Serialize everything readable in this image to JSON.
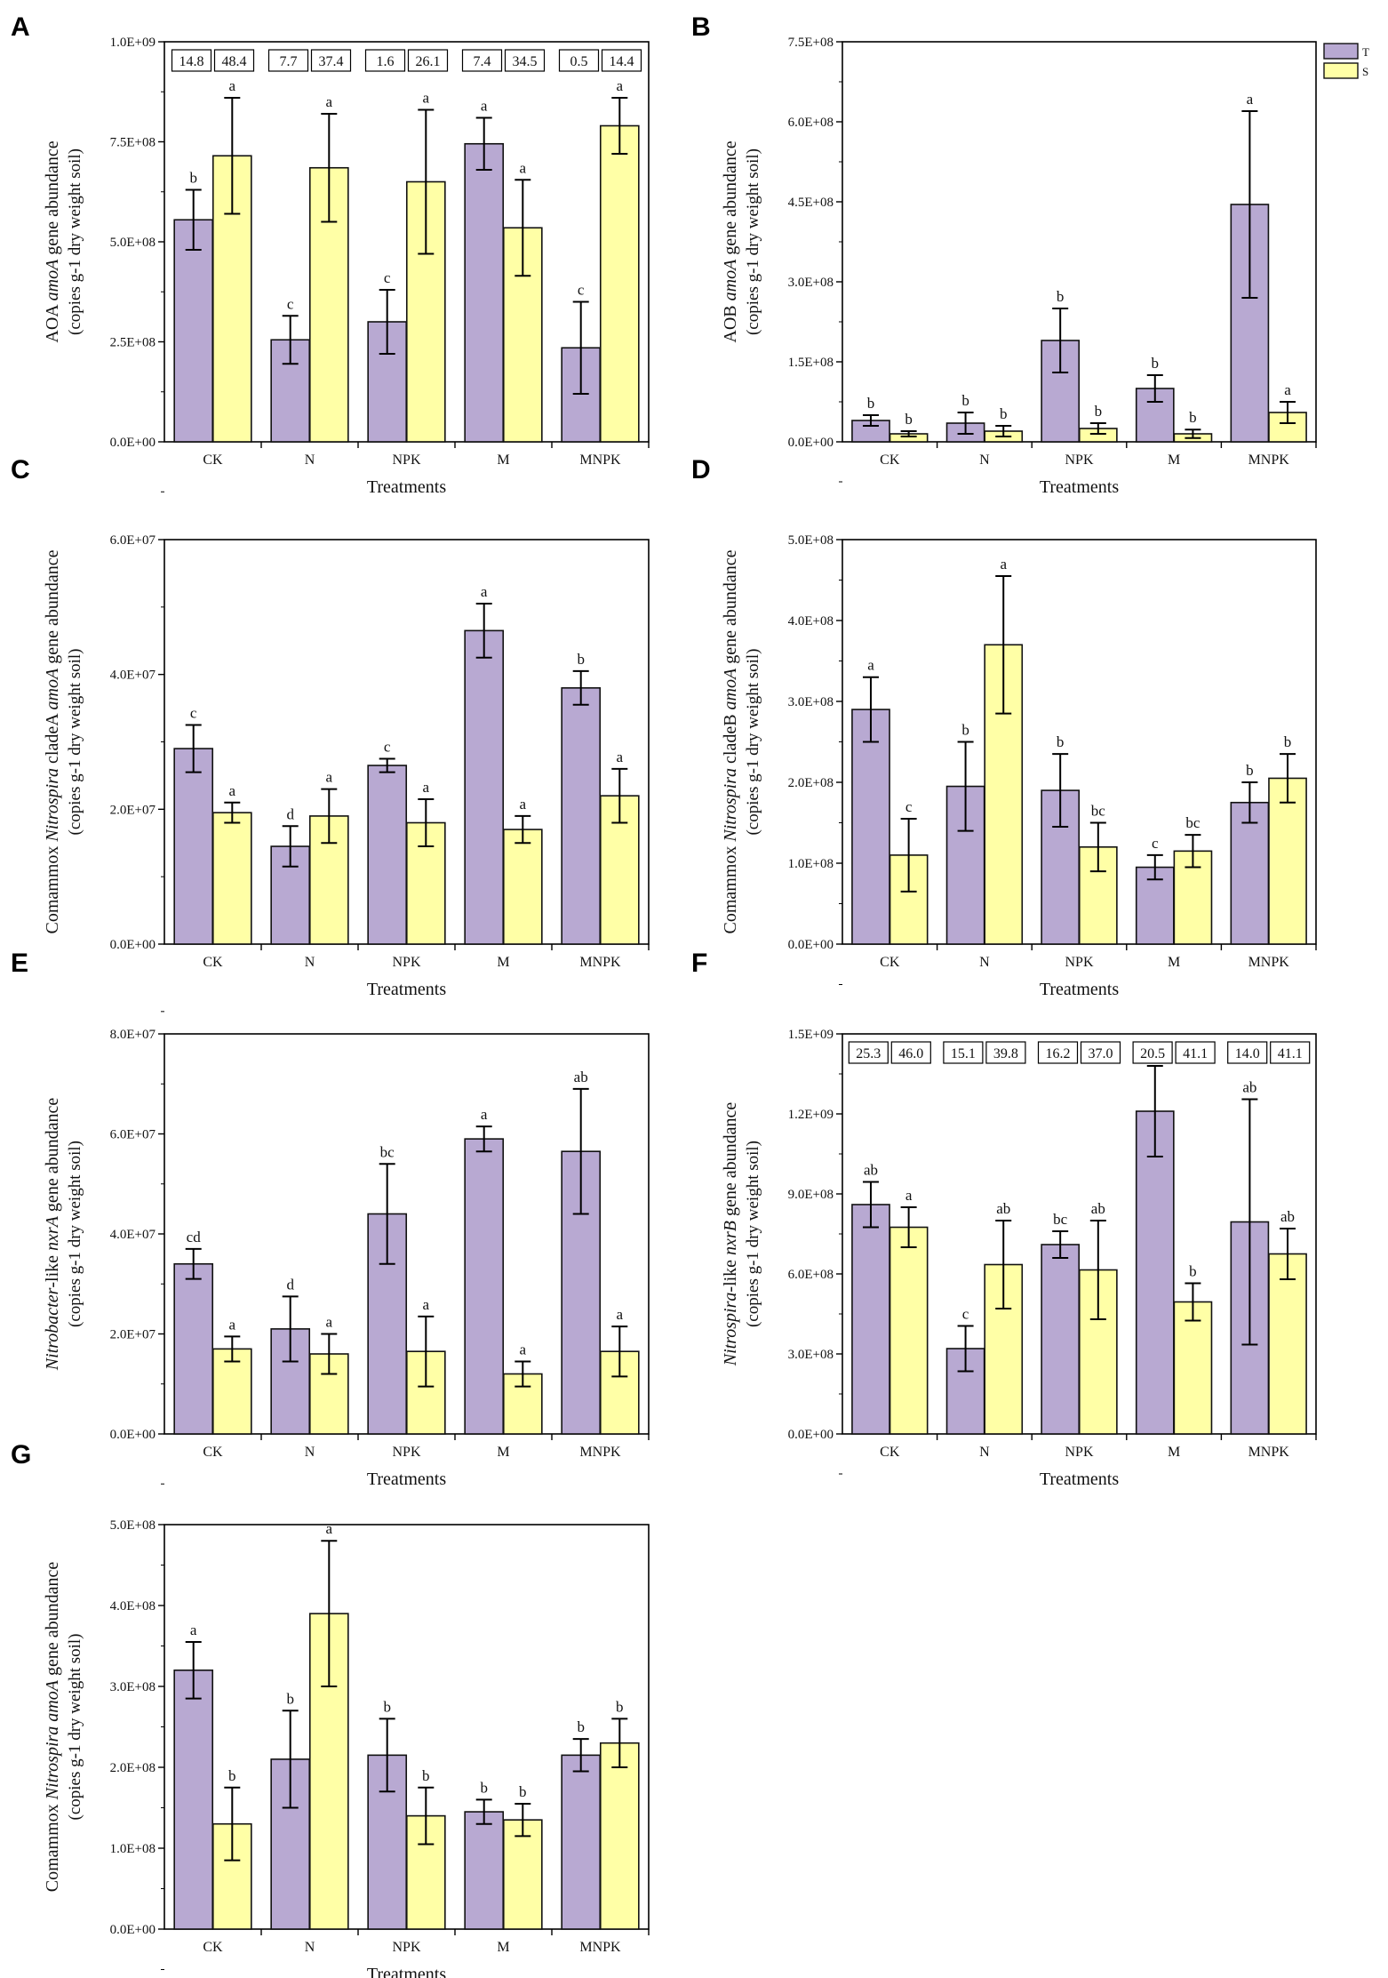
{
  "legend": [
    {
      "key": "T",
      "label": "T",
      "color": "#b8a9d2"
    },
    {
      "key": "S",
      "label": "S",
      "color": "#ffffa6"
    }
  ],
  "chart_data": [
    {
      "panel": "A",
      "type": "bar",
      "ylabel": "AOA amoA gene abundance",
      "ylabel_parts": [
        {
          "text": "AOA "
        },
        {
          "text": "amoA",
          "italic": true
        },
        {
          "text": " gene abundance"
        }
      ],
      "ylabel2": "(copies g-1  dry weight soil)",
      "xlabel": "Treatments",
      "categories": [
        "CK",
        "N",
        "NPK",
        "M",
        "MNPK"
      ],
      "ylim": [
        0,
        1000000000.0
      ],
      "yticks": [
        0,
        250000000.0,
        500000000.0,
        750000000.0,
        1000000000.0
      ],
      "ytick_labels": [
        "0.0E+00",
        "2.5E+08",
        "5.0E+08",
        "7.5E+08",
        "1.0E+09"
      ],
      "series": [
        {
          "name": "T",
          "values": [
            555000000.0,
            255000000.0,
            300000000.0,
            745000000.0,
            235000000.0
          ],
          "errors": [
            75000000.0,
            60000000.0,
            80000000.0,
            65000000.0,
            115000000.0
          ],
          "labels": [
            "b",
            "c",
            "c",
            "a",
            "c"
          ]
        },
        {
          "name": "S",
          "values": [
            715000000.0,
            685000000.0,
            650000000.0,
            535000000.0,
            790000000.0
          ],
          "errors": [
            145000000.0,
            135000000.0,
            180000000.0,
            120000000.0,
            70000000.0
          ],
          "labels": [
            "a",
            "a",
            "a",
            "a",
            "a"
          ]
        }
      ],
      "boxes": [
        [
          "14.8",
          "48.4"
        ],
        [
          "7.7",
          "37.4"
        ],
        [
          "1.6",
          "26.1"
        ],
        [
          "7.4",
          "34.5"
        ],
        [
          "0.5",
          "14.4"
        ]
      ]
    },
    {
      "panel": "B",
      "type": "bar",
      "ylabel": "AOB amoA gene abundance",
      "ylabel_parts": [
        {
          "text": "AOB "
        },
        {
          "text": "amoA",
          "italic": true
        },
        {
          "text": " gene abundance"
        }
      ],
      "ylabel2": "(copies g-1  dry weight soil)",
      "xlabel": "Treatments",
      "categories": [
        "CK",
        "N",
        "NPK",
        "M",
        "MNPK"
      ],
      "ylim": [
        0,
        750000000.0
      ],
      "yticks": [
        0,
        150000000.0,
        300000000.0,
        450000000.0,
        600000000.0,
        750000000.0
      ],
      "ytick_labels": [
        "0.0E+00",
        "1.5E+08",
        "3.0E+08",
        "4.5E+08",
        "6.0E+08",
        "7.5E+08"
      ],
      "series": [
        {
          "name": "T",
          "values": [
            40000000.0,
            35000000.0,
            190000000.0,
            100000000.0,
            445000000.0
          ],
          "errors": [
            10000000.0,
            20000000.0,
            60000000.0,
            25000000.0,
            175000000.0
          ],
          "labels": [
            "b",
            "b",
            "b",
            "b",
            "a"
          ]
        },
        {
          "name": "S",
          "values": [
            15000000.0,
            20000000.0,
            25000000.0,
            15000000.0,
            55000000.0
          ],
          "errors": [
            5000000.0,
            10000000.0,
            10000000.0,
            8000000.0,
            20000000.0
          ],
          "labels": [
            "b",
            "b",
            "b",
            "b",
            "a"
          ]
        }
      ],
      "boxes": []
    },
    {
      "panel": "C",
      "type": "bar",
      "ylabel": "Comammox Nitrospira cladeA amoA gene abundance",
      "ylabel_parts": [
        {
          "text": "Comammox "
        },
        {
          "text": "Nitrospira",
          "italic": true
        },
        {
          "text": " cladeA "
        },
        {
          "text": "amoA",
          "italic": true
        },
        {
          "text": " gene abundance"
        }
      ],
      "ylabel2": "(copies g-1  dry weight soil)",
      "xlabel": "Treatments",
      "categories": [
        "CK",
        "N",
        "NPK",
        "M",
        "MNPK"
      ],
      "ylim": [
        0,
        60000000.0
      ],
      "yticks": [
        0,
        20000000.0,
        40000000.0,
        60000000.0
      ],
      "ytick_labels": [
        "0.0E+00",
        "2.0E+07",
        "4.0E+07",
        "6.0E+07"
      ],
      "series": [
        {
          "name": "T",
          "values": [
            29000000.0,
            14500000.0,
            26500000.0,
            46500000.0,
            38000000.0
          ],
          "errors": [
            3500000.0,
            3000000.0,
            1000000.0,
            4000000.0,
            2500000.0
          ],
          "labels": [
            "c",
            "d",
            "c",
            "a",
            "b"
          ]
        },
        {
          "name": "S",
          "values": [
            19500000.0,
            19000000.0,
            18000000.0,
            17000000.0,
            22000000.0
          ],
          "errors": [
            1500000.0,
            4000000.0,
            3500000.0,
            2000000.0,
            4000000.0
          ],
          "labels": [
            "a",
            "a",
            "a",
            "a",
            "a"
          ]
        }
      ],
      "boxes": []
    },
    {
      "panel": "D",
      "type": "bar",
      "ylabel": "Comammox Nitrospira cladeB amoA gene abundance",
      "ylabel_parts": [
        {
          "text": "Comammox "
        },
        {
          "text": "Nitrospira",
          "italic": true
        },
        {
          "text": " cladeB "
        },
        {
          "text": "amoA",
          "italic": true
        },
        {
          "text": " gene abundance"
        }
      ],
      "ylabel2": "(copies g-1  dry weight soil)",
      "xlabel": "Treatments",
      "categories": [
        "CK",
        "N",
        "NPK",
        "M",
        "MNPK"
      ],
      "ylim": [
        0,
        500000000.0
      ],
      "yticks": [
        0,
        100000000.0,
        200000000.0,
        300000000.0,
        400000000.0,
        500000000.0
      ],
      "ytick_labels": [
        "0.0E+00",
        "1.0E+08",
        "2.0E+08",
        "3.0E+08",
        "4.0E+08",
        "5.0E+08"
      ],
      "series": [
        {
          "name": "T",
          "values": [
            290000000.0,
            195000000.0,
            190000000.0,
            95000000.0,
            175000000.0
          ],
          "errors": [
            40000000.0,
            55000000.0,
            45000000.0,
            15000000.0,
            25000000.0
          ],
          "labels": [
            "a",
            "b",
            "b",
            "c",
            "b"
          ]
        },
        {
          "name": "S",
          "values": [
            110000000.0,
            370000000.0,
            120000000.0,
            115000000.0,
            205000000.0
          ],
          "errors": [
            45000000.0,
            85000000.0,
            30000000.0,
            20000000.0,
            30000000.0
          ],
          "labels": [
            "c",
            "a",
            "bc",
            "bc",
            "b"
          ]
        }
      ],
      "boxes": []
    },
    {
      "panel": "E",
      "type": "bar",
      "ylabel": "Nitrobacter-like nxrA gene abundance",
      "ylabel_parts": [
        {
          "text": "Nitrobacter",
          "italic": true
        },
        {
          "text": "-like "
        },
        {
          "text": "nxrA",
          "italic": true
        },
        {
          "text": " gene abundance"
        }
      ],
      "ylabel2": "(copies g-1  dry weight soil)",
      "xlabel": "Treatments",
      "categories": [
        "CK",
        "N",
        "NPK",
        "M",
        "MNPK"
      ],
      "ylim": [
        0,
        80000000.0
      ],
      "yticks": [
        0,
        20000000.0,
        40000000.0,
        60000000.0,
        80000000.0
      ],
      "ytick_labels": [
        "0.0E+00",
        "2.0E+07",
        "4.0E+07",
        "6.0E+07",
        "8.0E+07"
      ],
      "series": [
        {
          "name": "T",
          "values": [
            34000000.0,
            21000000.0,
            44000000.0,
            59000000.0,
            56500000.0
          ],
          "errors": [
            3000000.0,
            6500000.0,
            10000000.0,
            2500000.0,
            12500000.0
          ],
          "labels": [
            "cd",
            "d",
            "bc",
            "a",
            "ab"
          ]
        },
        {
          "name": "S",
          "values": [
            17000000.0,
            16000000.0,
            16500000.0,
            12000000.0,
            16500000.0
          ],
          "errors": [
            2500000.0,
            4000000.0,
            7000000.0,
            2500000.0,
            5000000.0
          ],
          "labels": [
            "a",
            "a",
            "a",
            "a",
            "a"
          ]
        }
      ],
      "boxes": []
    },
    {
      "panel": "F",
      "type": "bar",
      "ylabel": "Nitrospira-like nxrB gene abundance",
      "ylabel_parts": [
        {
          "text": "Nitrospira",
          "italic": true
        },
        {
          "text": "-like "
        },
        {
          "text": "nxrB",
          "italic": true
        },
        {
          "text": " gene abundance"
        }
      ],
      "ylabel2": "(copies g-1  dry weight soil)",
      "xlabel": "Treatments",
      "categories": [
        "CK",
        "N",
        "NPK",
        "M",
        "MNPK"
      ],
      "ylim": [
        0,
        1500000000.0
      ],
      "yticks": [
        0,
        300000000.0,
        600000000.0,
        900000000.0,
        1200000000.0,
        1500000000.0
      ],
      "ytick_labels": [
        "0.0E+00",
        "3.0E+08",
        "6.0E+08",
        "9.0E+08",
        "1.2E+09",
        "1.5E+09"
      ],
      "series": [
        {
          "name": "T",
          "values": [
            860000000.0,
            320000000.0,
            710000000.0,
            1210000000.0,
            795000000.0
          ],
          "errors": [
            85000000.0,
            85000000.0,
            50000000.0,
            170000000.0,
            460000000.0
          ],
          "labels": [
            "ab",
            "c",
            "bc",
            "a",
            "ab"
          ]
        },
        {
          "name": "S",
          "values": [
            775000000.0,
            635000000.0,
            615000000.0,
            495000000.0,
            675000000.0
          ],
          "errors": [
            75000000.0,
            165000000.0,
            185000000.0,
            70000000.0,
            95000000.0
          ],
          "labels": [
            "a",
            "ab",
            "ab",
            "b",
            "ab"
          ]
        }
      ],
      "boxes": [
        [
          "25.3",
          "46.0"
        ],
        [
          "15.1",
          "39.8"
        ],
        [
          "16.2",
          "37.0"
        ],
        [
          "20.5",
          "41.1"
        ],
        [
          "14.0",
          "41.1"
        ]
      ]
    },
    {
      "panel": "G",
      "type": "bar",
      "ylabel": "Comammox Nitrospira amoA gene abundance",
      "ylabel_parts": [
        {
          "text": "Comammox "
        },
        {
          "text": "Nitrospira",
          "italic": true
        },
        {
          "text": " "
        },
        {
          "text": "amoA",
          "italic": true
        },
        {
          "text": " gene abundance"
        }
      ],
      "ylabel2": "(copies g-1  dry weight soil)",
      "xlabel": "Treatments",
      "categories": [
        "CK",
        "N",
        "NPK",
        "M",
        "MNPK"
      ],
      "ylim": [
        0,
        500000000.0
      ],
      "yticks": [
        0,
        100000000.0,
        200000000.0,
        300000000.0,
        400000000.0,
        500000000.0
      ],
      "ytick_labels": [
        "0.0E+00",
        "1.0E+08",
        "2.0E+08",
        "3.0E+08",
        "4.0E+08",
        "5.0E+08"
      ],
      "series": [
        {
          "name": "T",
          "values": [
            320000000.0,
            210000000.0,
            215000000.0,
            145000000.0,
            215000000.0
          ],
          "errors": [
            35000000.0,
            60000000.0,
            45000000.0,
            15000000.0,
            20000000.0
          ],
          "labels": [
            "a",
            "b",
            "b",
            "b",
            "b"
          ]
        },
        {
          "name": "S",
          "values": [
            130000000.0,
            390000000.0,
            140000000.0,
            135000000.0,
            230000000.0
          ],
          "errors": [
            45000000.0,
            90000000.0,
            35000000.0,
            20000000.0,
            30000000.0
          ],
          "labels": [
            "b",
            "a",
            "b",
            "b",
            "b"
          ]
        }
      ],
      "boxes": []
    }
  ]
}
